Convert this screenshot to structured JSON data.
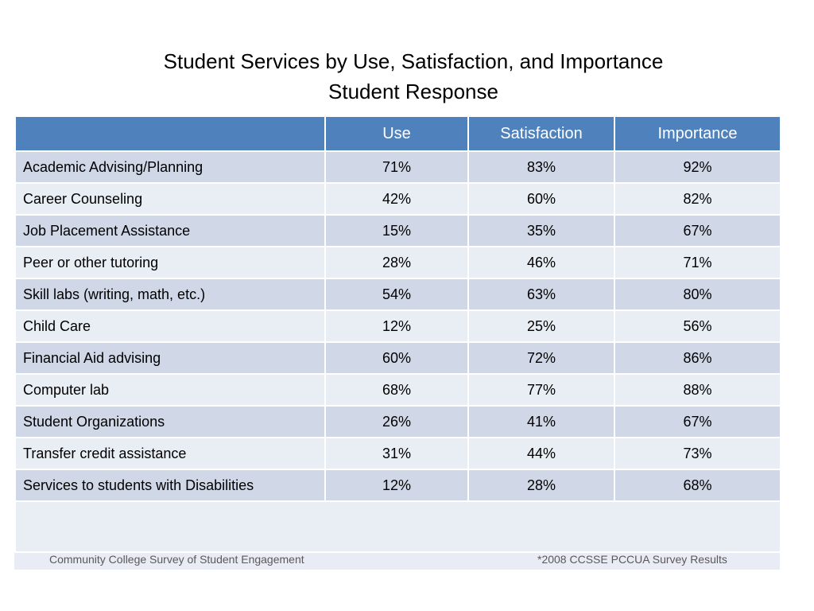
{
  "title": {
    "line1": "Student Services by Use, Satisfaction, and Importance",
    "line2": "Student Response"
  },
  "table": {
    "headers": [
      "",
      "Use",
      "Satisfaction",
      "Importance"
    ],
    "rows": [
      {
        "service": "Academic Advising/Planning",
        "use": "71%",
        "satisfaction": "83%",
        "importance": "92%"
      },
      {
        "service": "Career Counseling",
        "use": "42%",
        "satisfaction": "60%",
        "importance": "82%"
      },
      {
        "service": "Job Placement Assistance",
        "use": "15%",
        "satisfaction": "35%",
        "importance": "67%"
      },
      {
        "service": "Peer or other tutoring",
        "use": "28%",
        "satisfaction": "46%",
        "importance": "71%"
      },
      {
        "service": "Skill labs (writing, math, etc.)",
        "use": "54%",
        "satisfaction": "63%",
        "importance": "80%"
      },
      {
        "service": "Child Care",
        "use": "12%",
        "satisfaction": "25%",
        "importance": "56%"
      },
      {
        "service": "Financial Aid advising",
        "use": "60%",
        "satisfaction": "72%",
        "importance": "86%"
      },
      {
        "service": "Computer lab",
        "use": "68%",
        "satisfaction": "77%",
        "importance": "88%"
      },
      {
        "service": "Student Organizations",
        "use": "26%",
        "satisfaction": "41%",
        "importance": "67%"
      },
      {
        "service": "Transfer credit assistance",
        "use": "31%",
        "satisfaction": "44%",
        "importance": "73%"
      },
      {
        "service": "Services to students with Disabilities",
        "use": "12%",
        "satisfaction": "28%",
        "importance": "68%"
      }
    ]
  },
  "footer": {
    "left": "Community College Survey of Student Engagement",
    "right": "*2008 CCSSE  PCCUA Survey Results"
  },
  "colors": {
    "header_bg": "#4f81bd",
    "row_dark": "#d0d8e8",
    "row_light": "#e9edf4"
  }
}
